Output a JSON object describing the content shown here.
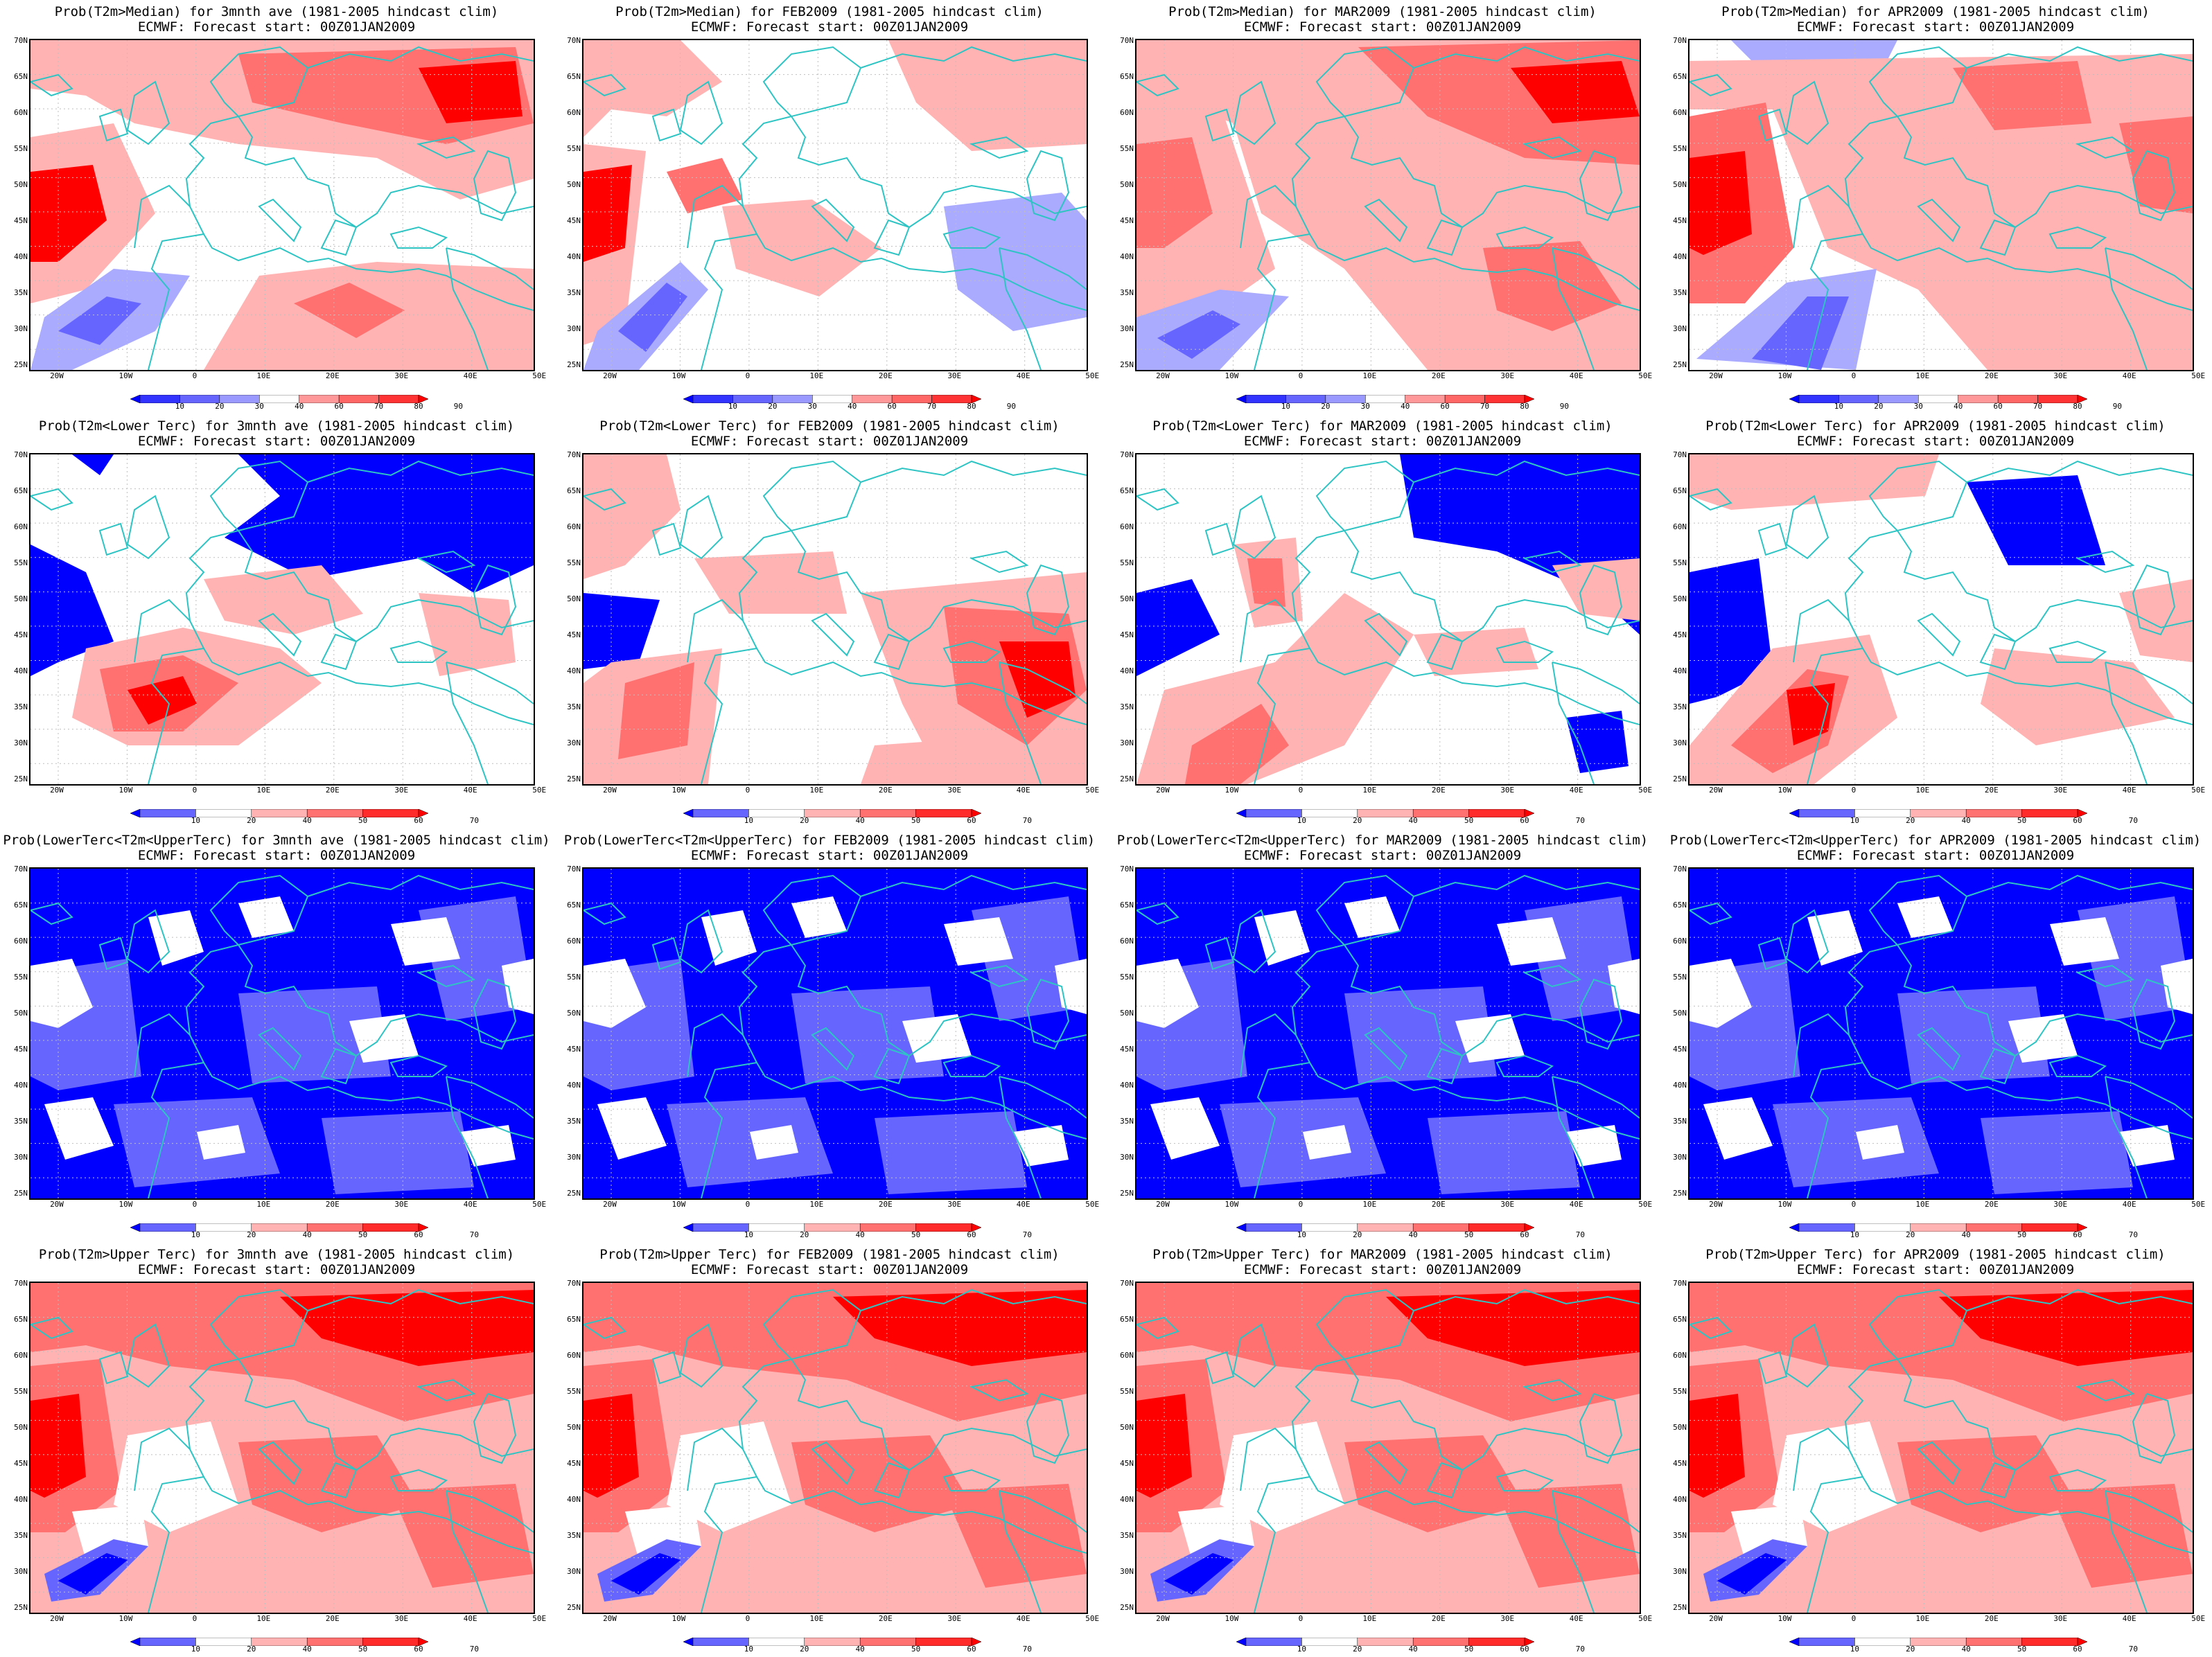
{
  "figure": {
    "subtitle": "ECMWF: Forecast start: 00Z01JAN2009",
    "lat_labels": [
      "70N",
      "65N",
      "60N",
      "55N",
      "50N",
      "45N",
      "40N",
      "35N",
      "30N",
      "25N"
    ],
    "lon_labels": [
      "20W",
      "10W",
      "0",
      "10E",
      "20E",
      "30E",
      "40E",
      "50E"
    ],
    "colors": {
      "coast": "#2ec4c4",
      "grid": "#bfbfbf",
      "blue_dark": "#0000ff",
      "blue_mid": "#6666ff",
      "blue_light": "#aaaaff",
      "red_light": "#ffb3b3",
      "red_mid": "#ff7070",
      "red_dark": "#ff2a2a",
      "red_deep": "#ff0000"
    },
    "colorbar_median": {
      "labels": [
        "10",
        "20",
        "30",
        "40",
        "60",
        "70",
        "80",
        "90"
      ],
      "colors": [
        "#0000ff",
        "#3333ff",
        "#6666ff",
        "#9999ff",
        "#ffffff",
        "#ff9999",
        "#ff6666",
        "#ff3333",
        "#ff0000"
      ]
    },
    "colorbar_tercile": {
      "labels": [
        "10",
        "20",
        "40",
        "50",
        "60",
        "70"
      ],
      "colors": [
        "#0000ff",
        "#6666ff",
        "#ffffff",
        "#ffb3b3",
        "#ff7070",
        "#ff2a2a",
        "#ff0000"
      ]
    }
  },
  "panels": [
    {
      "title": "Prob(T2m>Median) for 3mnth ave (1981-2005 hindcast clim)",
      "cbar": "median",
      "pattern": "median_a"
    },
    {
      "title": "Prob(T2m>Median) for FEB2009 (1981-2005 hindcast clim)",
      "cbar": "median",
      "pattern": "median_b"
    },
    {
      "title": "Prob(T2m>Median) for MAR2009 (1981-2005 hindcast clim)",
      "cbar": "median",
      "pattern": "median_c"
    },
    {
      "title": "Prob(T2m>Median) for APR2009 (1981-2005 hindcast clim)",
      "cbar": "median",
      "pattern": "median_d"
    },
    {
      "title": "Prob(T2m<Lower Terc) for 3mnth ave (1981-2005 hindcast clim)",
      "cbar": "tercile",
      "pattern": "lower_a"
    },
    {
      "title": "Prob(T2m<Lower Terc) for FEB2009 (1981-2005 hindcast clim)",
      "cbar": "tercile",
      "pattern": "lower_b"
    },
    {
      "title": "Prob(T2m<Lower Terc) for MAR2009 (1981-2005 hindcast clim)",
      "cbar": "tercile",
      "pattern": "lower_c"
    },
    {
      "title": "Prob(T2m<Lower Terc) for APR2009 (1981-2005 hindcast clim)",
      "cbar": "tercile",
      "pattern": "lower_d"
    },
    {
      "title": "Prob(LowerTerc<T2m<UpperTerc) for 3mnth ave (1981-2005 hindcast clim)",
      "cbar": "tercile",
      "pattern": "middle"
    },
    {
      "title": "Prob(LowerTerc<T2m<UpperTerc) for FEB2009 (1981-2005 hindcast clim)",
      "cbar": "tercile",
      "pattern": "middle"
    },
    {
      "title": "Prob(LowerTerc<T2m<UpperTerc) for MAR2009 (1981-2005 hindcast clim)",
      "cbar": "tercile",
      "pattern": "middle"
    },
    {
      "title": "Prob(LowerTerc<T2m<UpperTerc) for APR2009 (1981-2005 hindcast clim)",
      "cbar": "tercile",
      "pattern": "middle"
    },
    {
      "title": "Prob(T2m>Upper Terc) for 3mnth ave (1981-2005 hindcast clim)",
      "cbar": "tercile",
      "pattern": "upper"
    },
    {
      "title": "Prob(T2m>Upper Terc) for FEB2009 (1981-2005 hindcast clim)",
      "cbar": "tercile",
      "pattern": "upper"
    },
    {
      "title": "Prob(T2m>Upper Terc) for MAR2009 (1981-2005 hindcast clim)",
      "cbar": "tercile",
      "pattern": "upper"
    },
    {
      "title": "Prob(T2m>Upper Terc) for APR2009 (1981-2005 hindcast clim)",
      "cbar": "tercile",
      "pattern": "upper"
    }
  ]
}
